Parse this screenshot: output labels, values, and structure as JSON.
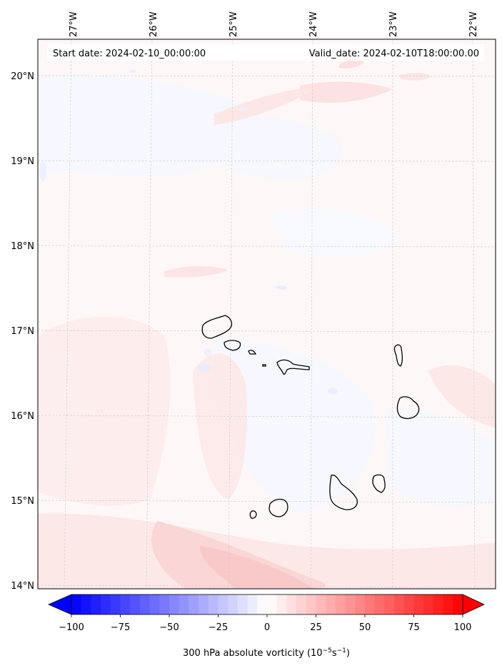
{
  "header": {
    "start_date": "Start date: 2024-02-10_00:00:00",
    "valid_date": "Valid_date: 2024-02-10T18:00:00.00"
  },
  "map": {
    "longitude_ticks": [
      "27°W",
      "26°W",
      "25°W",
      "24°W",
      "23°W",
      "22°W"
    ],
    "latitude_ticks": [
      "20°N",
      "19°N",
      "18°N",
      "17°N",
      "16°N",
      "15°N",
      "14°N"
    ],
    "colors": {
      "negative": "#0000ff",
      "neutral": "#ffffff",
      "positive": "#ff0000",
      "coastline": "#000000",
      "gridline": "#c8c8c8"
    }
  },
  "colorbar": {
    "ticks": [
      "−100",
      "−75",
      "−50",
      "−25",
      "0",
      "25",
      "50",
      "75",
      "100"
    ],
    "min": -100,
    "max": 100,
    "label_main": "300 hPa absolute vorticity (10",
    "label_exp1": "−5",
    "label_mid": "s",
    "label_exp2": "−1",
    "label_end": ")"
  }
}
